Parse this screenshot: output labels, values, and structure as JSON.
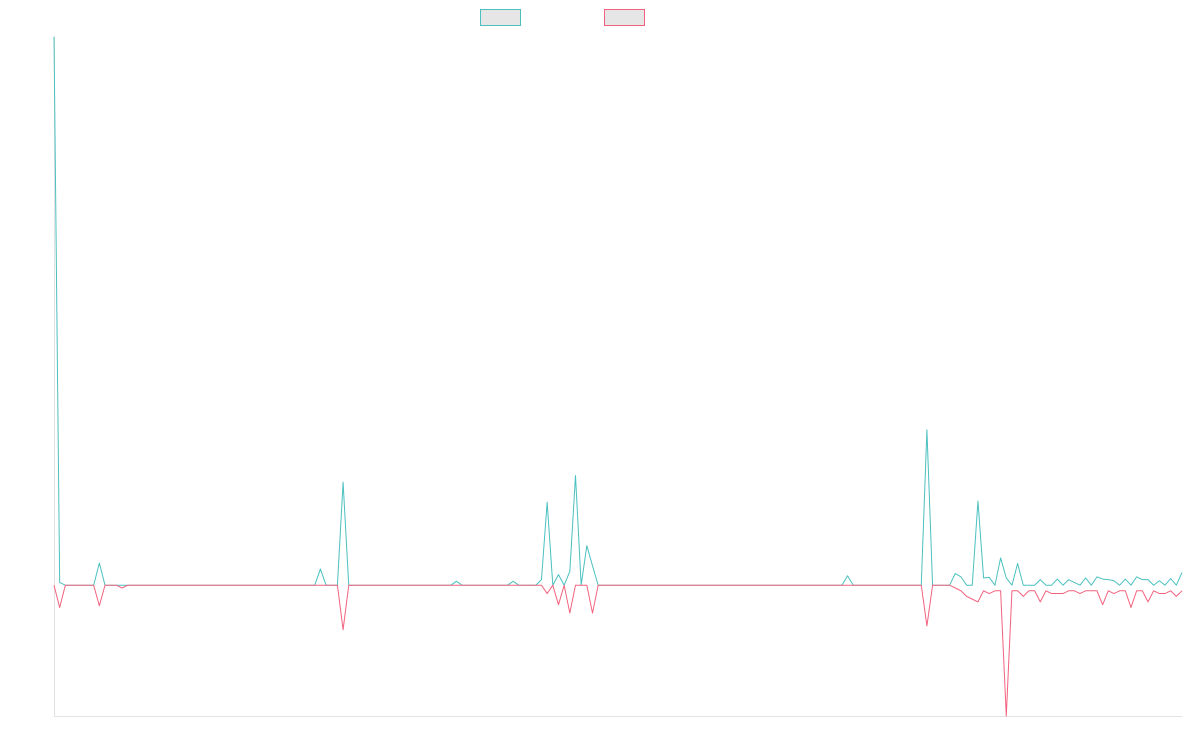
{
  "chart_data": {
    "type": "line",
    "title": "",
    "xlabel": "",
    "ylabel": "",
    "grid": false,
    "legend_position": "top-center",
    "x_count": 200,
    "ylim": [
      -2400,
      9800
    ],
    "series": [
      {
        "color": "#4bc0c0",
        "legend_fill": "#e6e6e6",
        "values": [
          9800,
          0,
          -50,
          -50,
          -50,
          -50,
          -50,
          -50,
          350,
          -50,
          -50,
          -50,
          -50,
          -50,
          -50,
          -50,
          -50,
          -50,
          -50,
          -50,
          -50,
          -50,
          -50,
          -50,
          -50,
          -50,
          -50,
          -50,
          -50,
          -50,
          -50,
          -50,
          -50,
          -50,
          -50,
          -50,
          -50,
          -50,
          -50,
          -50,
          -50,
          -50,
          -50,
          -50,
          -50,
          -50,
          -50,
          240,
          -50,
          -50,
          -50,
          1800,
          -50,
          -50,
          -50,
          -50,
          -50,
          -50,
          -50,
          -50,
          -50,
          -50,
          -50,
          -50,
          -50,
          -50,
          -50,
          -50,
          -50,
          -50,
          -50,
          20,
          -50,
          -50,
          -50,
          -50,
          -50,
          -50,
          -50,
          -50,
          -50,
          20,
          -50,
          -50,
          -50,
          -50,
          50,
          1440,
          -50,
          140,
          -50,
          200,
          1920,
          -50,
          660,
          300,
          -50,
          -50,
          -50,
          -50,
          -50,
          -50,
          -50,
          -50,
          -50,
          -50,
          -50,
          -50,
          -50,
          -50,
          -50,
          -50,
          -50,
          -50,
          -50,
          -50,
          -50,
          -50,
          -50,
          -50,
          -50,
          -50,
          -50,
          -50,
          -50,
          -50,
          -50,
          -50,
          -50,
          -50,
          -50,
          -50,
          -50,
          -50,
          -50,
          -50,
          -50,
          -50,
          -50,
          -50,
          120,
          -50,
          -50,
          -50,
          -50,
          -50,
          -50,
          -50,
          -50,
          -50,
          -50,
          -50,
          -50,
          -50,
          2740,
          -50,
          -50,
          -50,
          -50,
          160,
          100,
          -50,
          -50,
          1460,
          80,
          90,
          -50,
          440,
          80,
          -50,
          340,
          -50,
          -50,
          -50,
          50,
          -50,
          -50,
          60,
          -50,
          50,
          0,
          -50,
          80,
          -50,
          100,
          60,
          50,
          30,
          -50,
          60,
          -50,
          100,
          50,
          50,
          -50,
          30,
          -50,
          70,
          -50,
          180
        ]
      },
      {
        "color": "#f2627f",
        "legend_fill": "#e6e6e6",
        "values": [
          -50,
          -450,
          -50,
          -50,
          -50,
          -50,
          -50,
          -50,
          -420,
          -50,
          -50,
          -50,
          -100,
          -50,
          -50,
          -50,
          -50,
          -50,
          -50,
          -50,
          -50,
          -50,
          -50,
          -50,
          -50,
          -50,
          -50,
          -50,
          -50,
          -50,
          -50,
          -50,
          -50,
          -50,
          -50,
          -50,
          -50,
          -50,
          -50,
          -50,
          -50,
          -50,
          -50,
          -50,
          -50,
          -50,
          -50,
          -50,
          -50,
          -50,
          -50,
          -850,
          -50,
          -50,
          -50,
          -50,
          -50,
          -50,
          -50,
          -50,
          -50,
          -50,
          -50,
          -50,
          -50,
          -50,
          -50,
          -50,
          -50,
          -50,
          -50,
          -50,
          -50,
          -50,
          -50,
          -50,
          -50,
          -50,
          -50,
          -50,
          -50,
          -50,
          -50,
          -50,
          -50,
          -50,
          -50,
          -200,
          -50,
          -400,
          -50,
          -550,
          -50,
          -50,
          -50,
          -550,
          -50,
          -50,
          -50,
          -50,
          -50,
          -50,
          -50,
          -50,
          -50,
          -50,
          -50,
          -50,
          -50,
          -50,
          -50,
          -50,
          -50,
          -50,
          -50,
          -50,
          -50,
          -50,
          -50,
          -50,
          -50,
          -50,
          -50,
          -50,
          -50,
          -50,
          -50,
          -50,
          -50,
          -50,
          -50,
          -50,
          -50,
          -50,
          -50,
          -50,
          -50,
          -50,
          -50,
          -50,
          -50,
          -50,
          -50,
          -50,
          -50,
          -50,
          -50,
          -50,
          -50,
          -50,
          -50,
          -50,
          -50,
          -50,
          -780,
          -50,
          -50,
          -50,
          -50,
          -100,
          -150,
          -250,
          -300,
          -350,
          -150,
          -200,
          -150,
          -150,
          -2400,
          -150,
          -150,
          -250,
          -150,
          -150,
          -350,
          -150,
          -200,
          -200,
          -200,
          -150,
          -150,
          -200,
          -150,
          -150,
          -150,
          -400,
          -150,
          -200,
          -150,
          -150,
          -450,
          -150,
          -150,
          -350,
          -150,
          -200,
          -200,
          -150,
          -250,
          -150
        ]
      }
    ]
  }
}
